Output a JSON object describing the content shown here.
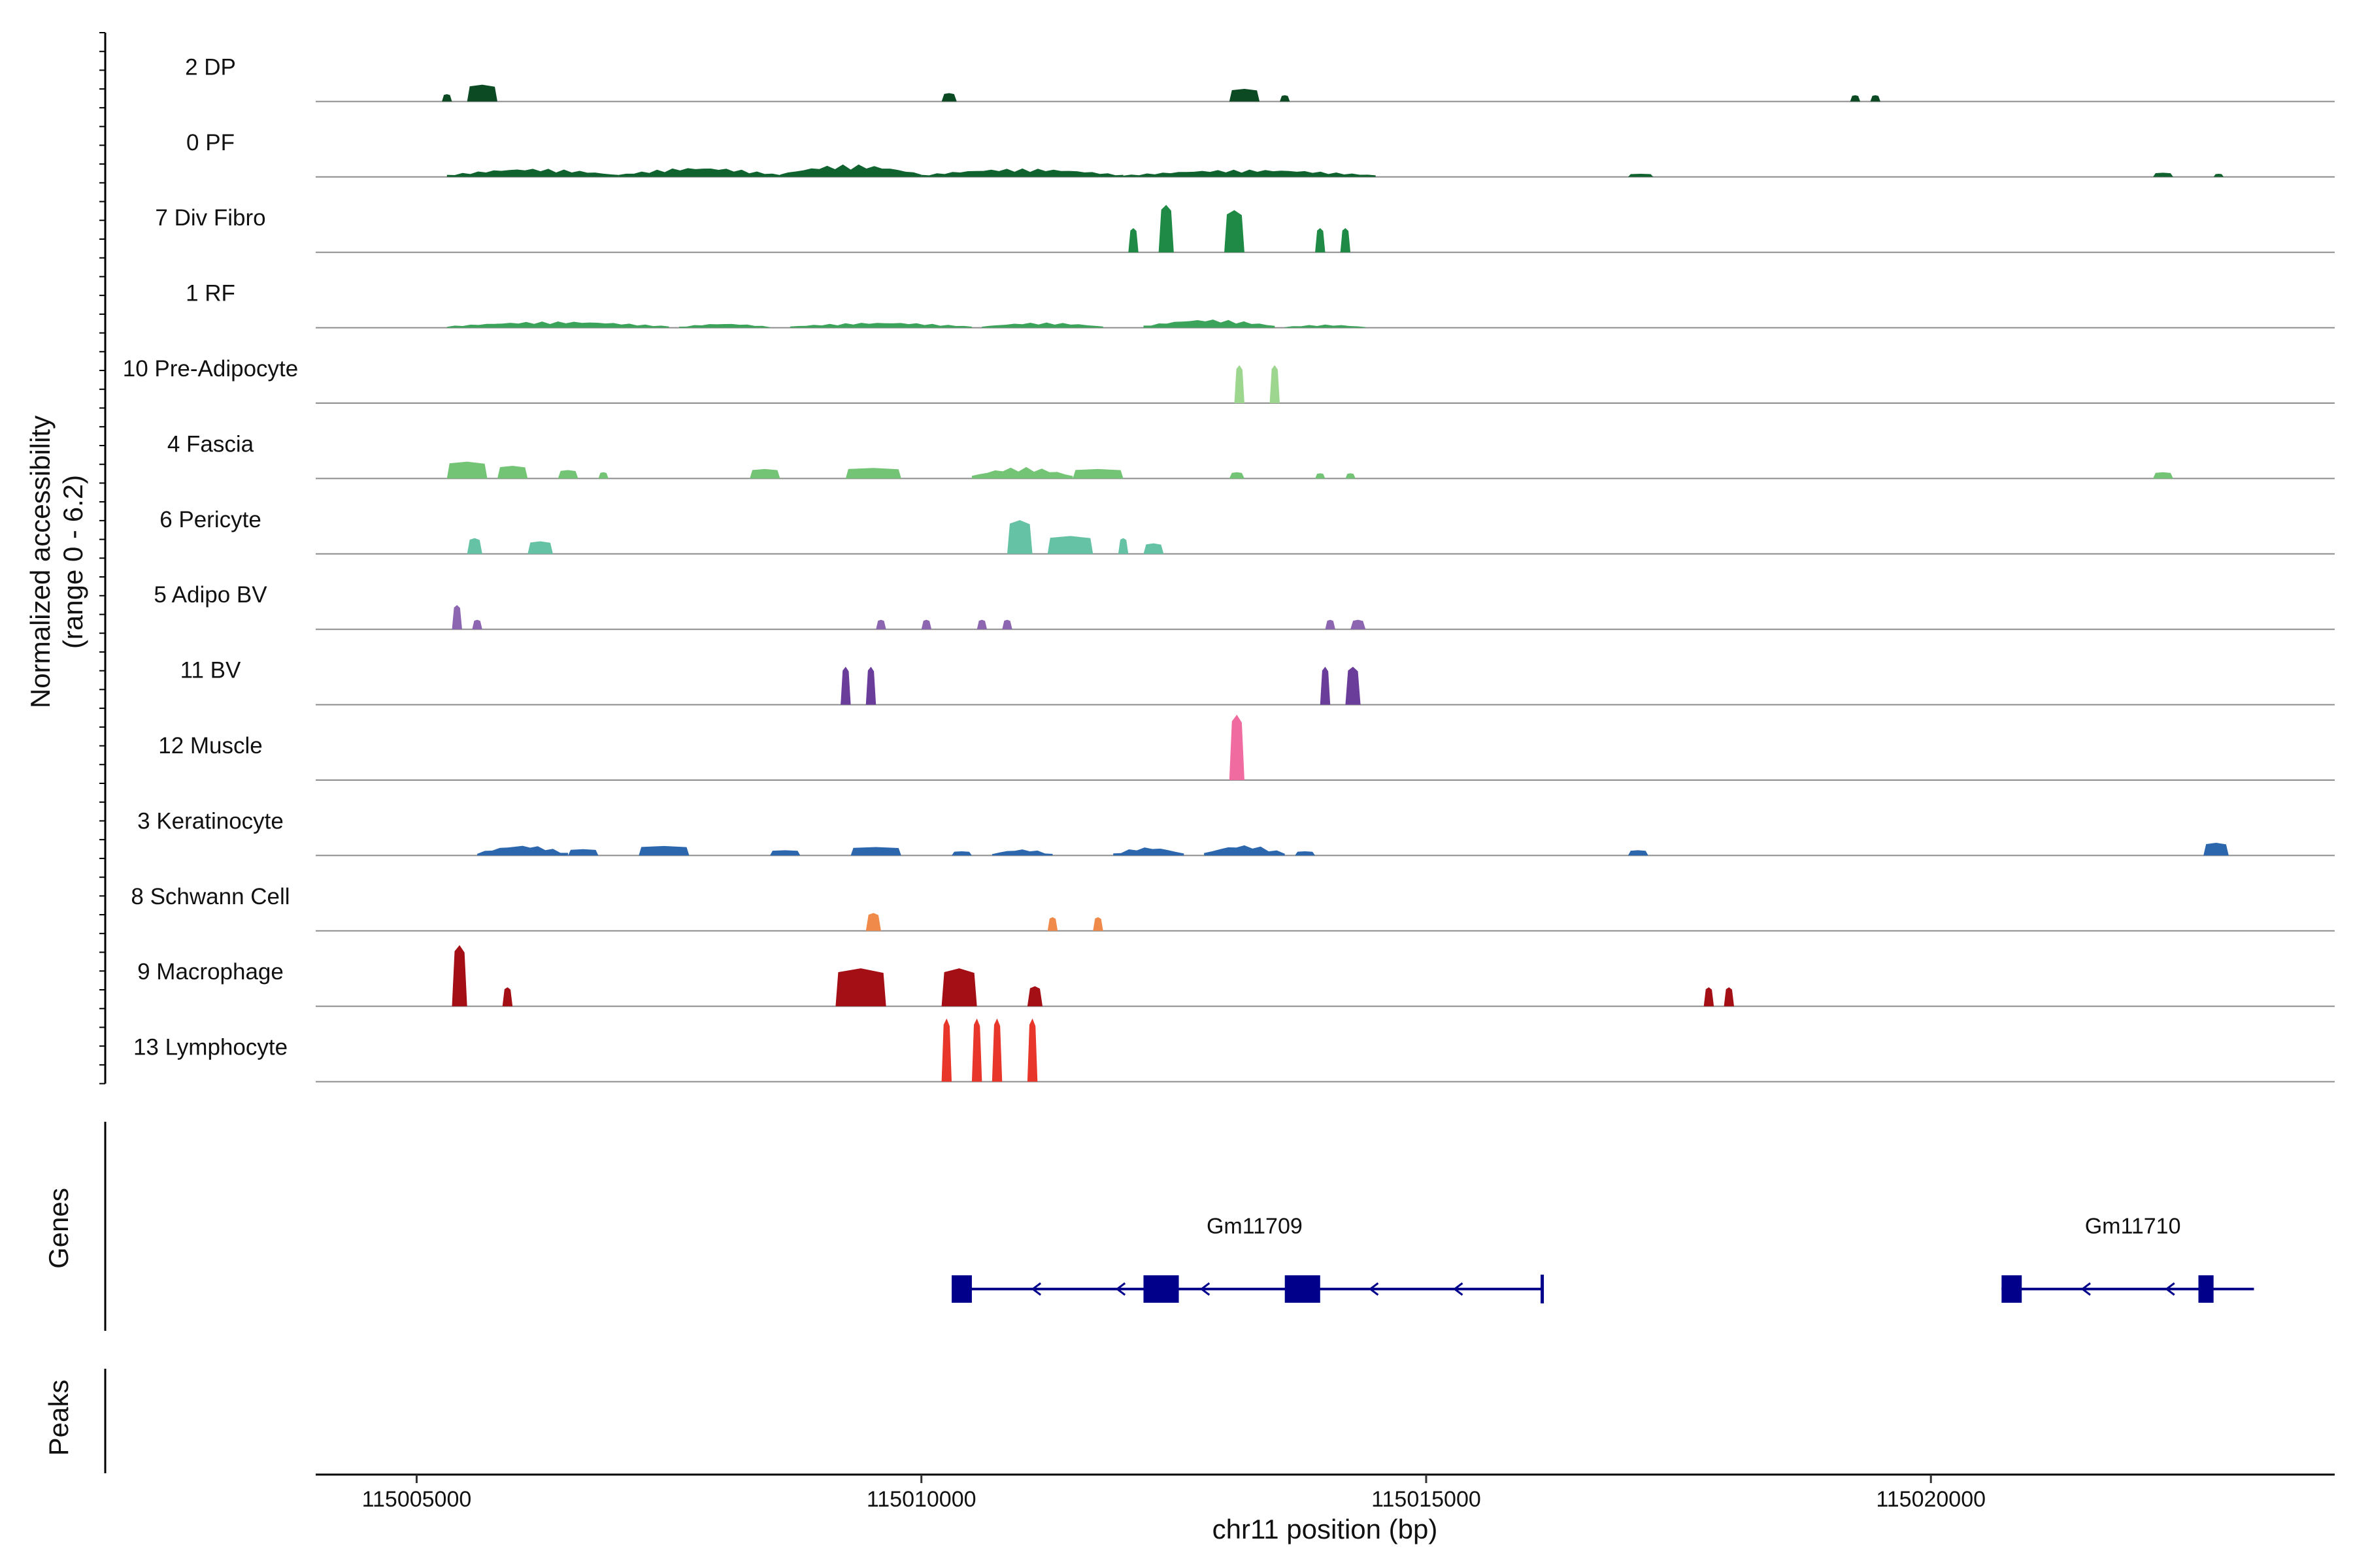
{
  "chart_data": {
    "type": "area",
    "subtype": "genome-coverage-tracks",
    "ylabel_lines": [
      "Normalized accessibility",
      "(range 0 - 6.2)"
    ],
    "y_range": [
      0,
      6.2
    ],
    "xlabel": "chr11 position (bp)",
    "x_range": [
      115004000,
      115024000
    ],
    "x_ticks": [
      115005000,
      115010000,
      115015000,
      115020000
    ],
    "x_tick_labels": [
      "115005000",
      "115010000",
      "115015000",
      "115020000"
    ],
    "panel_labels": {
      "genes": "Genes",
      "peaks": "Peaks"
    },
    "tracks": [
      {
        "name": "2 DP",
        "color": "#0b4a23",
        "peaks": [
          {
            "start": 115005250,
            "end": 115005350,
            "height": 0.7
          },
          {
            "start": 115005500,
            "end": 115005800,
            "height": 1.6
          },
          {
            "start": 115010200,
            "end": 115010350,
            "height": 0.8
          },
          {
            "start": 115013050,
            "end": 115013350,
            "height": 1.2
          },
          {
            "start": 115013550,
            "end": 115013650,
            "height": 0.6
          },
          {
            "start": 115019200,
            "end": 115019300,
            "height": 0.6
          },
          {
            "start": 115019400,
            "end": 115019500,
            "height": 0.6
          }
        ]
      },
      {
        "name": "0 PF",
        "color": "#10622e",
        "peaks": [
          {
            "start": 115005300,
            "end": 115007000,
            "height": 0.8
          },
          {
            "start": 115007000,
            "end": 115008600,
            "height": 0.9
          },
          {
            "start": 115008600,
            "end": 115010000,
            "height": 1.2
          },
          {
            "start": 115010000,
            "end": 115012000,
            "height": 0.8
          },
          {
            "start": 115012000,
            "end": 115014500,
            "height": 0.7
          },
          {
            "start": 115017000,
            "end": 115017250,
            "height": 0.3
          },
          {
            "start": 115022200,
            "end": 115022400,
            "height": 0.4
          },
          {
            "start": 115022800,
            "end": 115022900,
            "height": 0.3
          }
        ]
      },
      {
        "name": "7 Div Fibro",
        "color": "#1f8a46",
        "peaks": [
          {
            "start": 115012050,
            "end": 115012150,
            "height": 2.3
          },
          {
            "start": 115012350,
            "end": 115012500,
            "height": 4.5
          },
          {
            "start": 115013000,
            "end": 115013200,
            "height": 4.0
          },
          {
            "start": 115013900,
            "end": 115014000,
            "height": 2.3
          },
          {
            "start": 115014150,
            "end": 115014250,
            "height": 2.3
          }
        ]
      },
      {
        "name": "1 RF",
        "color": "#3ca35a",
        "peaks": [
          {
            "start": 115005300,
            "end": 115007500,
            "height": 0.6
          },
          {
            "start": 115007600,
            "end": 115008500,
            "height": 0.4
          },
          {
            "start": 115008700,
            "end": 115010500,
            "height": 0.5
          },
          {
            "start": 115010600,
            "end": 115011800,
            "height": 0.5
          },
          {
            "start": 115012200,
            "end": 115013500,
            "height": 0.8
          },
          {
            "start": 115013600,
            "end": 115014400,
            "height": 0.3
          }
        ]
      },
      {
        "name": "10 Pre-Adipocyte",
        "color": "#9dd68f",
        "peaks": [
          {
            "start": 115013100,
            "end": 115013200,
            "height": 3.6
          },
          {
            "start": 115013450,
            "end": 115013550,
            "height": 3.6
          }
        ]
      },
      {
        "name": "4 Fascia",
        "color": "#74c476",
        "peaks": [
          {
            "start": 115005300,
            "end": 115005700,
            "height": 1.6
          },
          {
            "start": 115005800,
            "end": 115006100,
            "height": 1.2
          },
          {
            "start": 115006400,
            "end": 115006600,
            "height": 0.8
          },
          {
            "start": 115006800,
            "end": 115006900,
            "height": 0.6
          },
          {
            "start": 115008300,
            "end": 115008600,
            "height": 0.9
          },
          {
            "start": 115009250,
            "end": 115009800,
            "height": 1.0
          },
          {
            "start": 115010500,
            "end": 115011500,
            "height": 1.1
          },
          {
            "start": 115011500,
            "end": 115012000,
            "height": 0.9
          },
          {
            "start": 115013050,
            "end": 115013200,
            "height": 0.6
          },
          {
            "start": 115013900,
            "end": 115014000,
            "height": 0.5
          },
          {
            "start": 115014200,
            "end": 115014300,
            "height": 0.5
          },
          {
            "start": 115022200,
            "end": 115022400,
            "height": 0.6
          }
        ]
      },
      {
        "name": "6 Pericyte",
        "color": "#66c2a5",
        "peaks": [
          {
            "start": 115005500,
            "end": 115005650,
            "height": 1.5
          },
          {
            "start": 115006100,
            "end": 115006350,
            "height": 1.2
          },
          {
            "start": 115010850,
            "end": 115011100,
            "height": 3.2
          },
          {
            "start": 115011250,
            "end": 115011700,
            "height": 1.7
          },
          {
            "start": 115011950,
            "end": 115012050,
            "height": 1.5
          },
          {
            "start": 115012200,
            "end": 115012400,
            "height": 1.0
          }
        ]
      },
      {
        "name": "5 Adipo BV",
        "color": "#8c66b0",
        "peaks": [
          {
            "start": 115005350,
            "end": 115005450,
            "height": 2.3
          },
          {
            "start": 115005550,
            "end": 115005650,
            "height": 0.9
          },
          {
            "start": 115009550,
            "end": 115009650,
            "height": 0.9
          },
          {
            "start": 115010000,
            "end": 115010100,
            "height": 0.9
          },
          {
            "start": 115010550,
            "end": 115010650,
            "height": 0.9
          },
          {
            "start": 115010800,
            "end": 115010900,
            "height": 0.9
          },
          {
            "start": 115014000,
            "end": 115014100,
            "height": 0.9
          },
          {
            "start": 115014250,
            "end": 115014400,
            "height": 0.9
          }
        ]
      },
      {
        "name": "11 BV",
        "color": "#6a3d9a",
        "peaks": [
          {
            "start": 115009200,
            "end": 115009300,
            "height": 3.6
          },
          {
            "start": 115009450,
            "end": 115009550,
            "height": 3.6
          },
          {
            "start": 115013950,
            "end": 115014050,
            "height": 3.6
          },
          {
            "start": 115014200,
            "end": 115014350,
            "height": 3.6
          }
        ]
      },
      {
        "name": "12 Muscle",
        "color": "#f06ca0",
        "peaks": [
          {
            "start": 115013050,
            "end": 115013200,
            "height": 6.2
          }
        ]
      },
      {
        "name": "3 Keratinocyte",
        "color": "#2c66ad",
        "peaks": [
          {
            "start": 115005600,
            "end": 115006500,
            "height": 1.0
          },
          {
            "start": 115006500,
            "end": 115006800,
            "height": 0.6
          },
          {
            "start": 115007200,
            "end": 115007700,
            "height": 0.9
          },
          {
            "start": 115008500,
            "end": 115008800,
            "height": 0.5
          },
          {
            "start": 115009300,
            "end": 115009800,
            "height": 0.8
          },
          {
            "start": 115010300,
            "end": 115010500,
            "height": 0.4
          },
          {
            "start": 115010700,
            "end": 115011300,
            "height": 0.6
          },
          {
            "start": 115011900,
            "end": 115012600,
            "height": 0.8
          },
          {
            "start": 115012800,
            "end": 115013600,
            "height": 1.0
          },
          {
            "start": 115013700,
            "end": 115013900,
            "height": 0.4
          },
          {
            "start": 115017000,
            "end": 115017200,
            "height": 0.5
          },
          {
            "start": 115022700,
            "end": 115022950,
            "height": 1.2
          }
        ]
      },
      {
        "name": "8 Schwann Cell",
        "color": "#f08a4b",
        "peaks": [
          {
            "start": 115009450,
            "end": 115009600,
            "height": 1.7
          },
          {
            "start": 115011250,
            "end": 115011350,
            "height": 1.3
          },
          {
            "start": 115011700,
            "end": 115011800,
            "height": 1.3
          }
        ]
      },
      {
        "name": "9 Macrophage",
        "color": "#a30f15",
        "peaks": [
          {
            "start": 115005350,
            "end": 115005500,
            "height": 5.8
          },
          {
            "start": 115005850,
            "end": 115005950,
            "height": 1.8
          },
          {
            "start": 115009150,
            "end": 115009650,
            "height": 3.6
          },
          {
            "start": 115010200,
            "end": 115010550,
            "height": 3.6
          },
          {
            "start": 115011050,
            "end": 115011200,
            "height": 1.9
          },
          {
            "start": 115017750,
            "end": 115017850,
            "height": 1.8
          },
          {
            "start": 115017950,
            "end": 115018050,
            "height": 1.8
          }
        ]
      },
      {
        "name": "13 Lymphocyte",
        "color": "#e8362b",
        "peaks": [
          {
            "start": 115010200,
            "end": 115010300,
            "height": 6.0
          },
          {
            "start": 115010500,
            "end": 115010600,
            "height": 6.0
          },
          {
            "start": 115010700,
            "end": 115010800,
            "height": 6.0
          },
          {
            "start": 115011050,
            "end": 115011150,
            "height": 6.0
          }
        ]
      }
    ],
    "genes": [
      {
        "name": "Gm11709",
        "strand": "-",
        "start": 115010300,
        "end": 115016150,
        "exons": [
          [
            115010300,
            115010500
          ],
          [
            115012200,
            115012550
          ],
          [
            115013600,
            115013950
          ]
        ]
      },
      {
        "name": "Gm11710",
        "strand": "-",
        "start": 115020700,
        "end": 115023200,
        "exons": [
          [
            115020700,
            115020900
          ],
          [
            115022650,
            115022800
          ]
        ]
      }
    ],
    "gene_color": "#00008b"
  }
}
